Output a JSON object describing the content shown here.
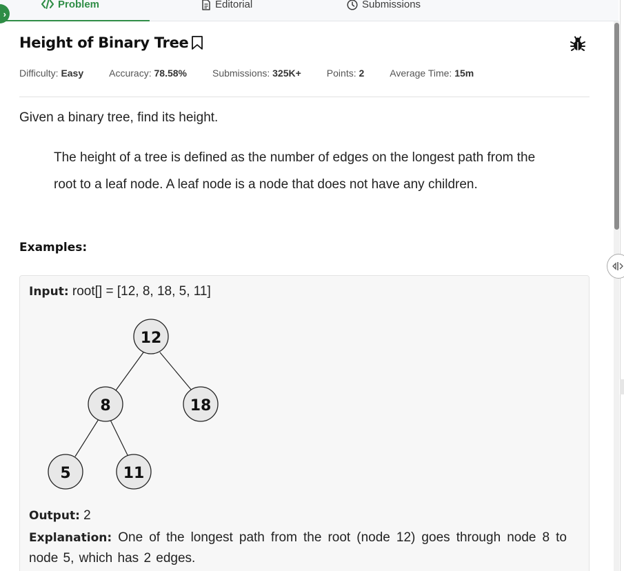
{
  "tabs": [
    {
      "label": "Problem",
      "icon": "code-icon",
      "active": true
    },
    {
      "label": "Editorial",
      "icon": "document-icon",
      "active": false
    },
    {
      "label": "Submissions",
      "icon": "clock-icon",
      "active": false
    }
  ],
  "colors": {
    "accent": "#2f8d46",
    "text": "#1e1e1e",
    "muted": "#555555",
    "box_bg": "#f7f7f7"
  },
  "problem": {
    "title": "Height of Binary Tree",
    "meta": {
      "difficulty_label": "Difficulty:",
      "difficulty": "Easy",
      "accuracy_label": "Accuracy:",
      "accuracy": "78.58%",
      "submissions_label": "Submissions:",
      "submissions": "325K+",
      "points_label": "Points:",
      "points": "2",
      "time_label": "Average Time:",
      "time": "15m"
    },
    "intro": "Given a binary tree, find its height.",
    "definition": "The height of a tree is defined as the number of edges on the longest path from the root to a leaf node. A leaf node is a node that does not have any children.",
    "examples_heading": "Examples:",
    "example": {
      "input_label": "Input:",
      "input_value": "root[] = [12, 8, 18, 5, 11]",
      "tree_nodes": [
        "12",
        "8",
        "18",
        "5",
        "11"
      ],
      "output_label": "Output:",
      "output_value": "2",
      "explanation_label": "Explanation:",
      "explanation": "One of the longest path from the root (node 12) goes through node 8 to node 5, which has 2 edges."
    }
  }
}
